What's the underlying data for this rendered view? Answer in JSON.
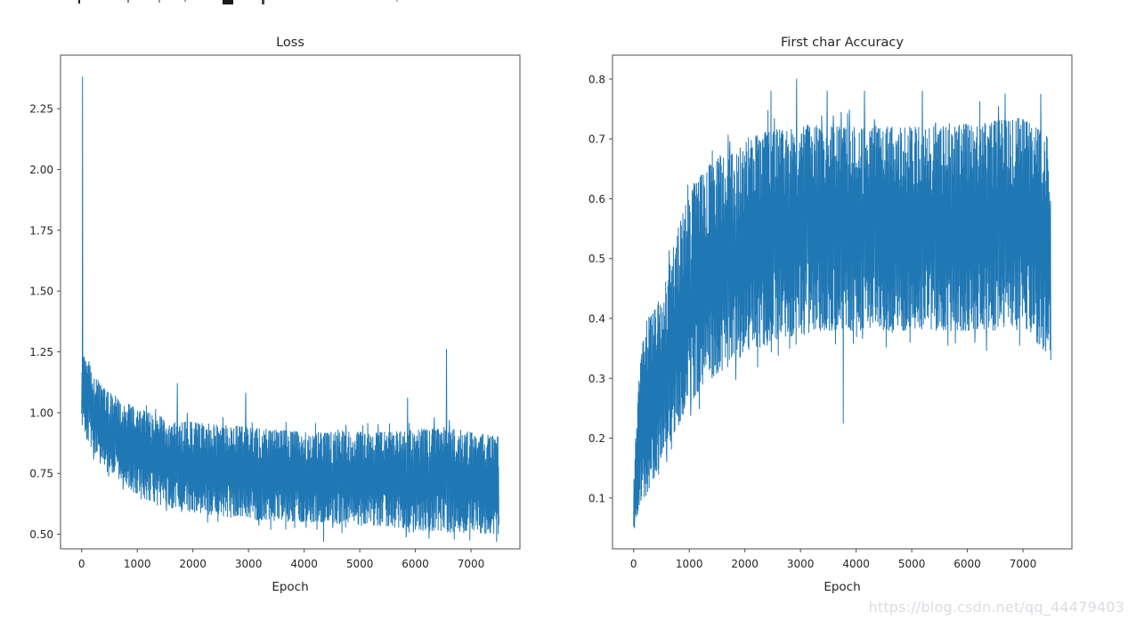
{
  "figure": {
    "background": "#ffffff",
    "axis_color": "#4d4d4d",
    "text_color": "#262626"
  },
  "watermark": {
    "text": "https://blog.csdn.net/qq_44479403",
    "color": "#dcdce4"
  },
  "chart_data": [
    {
      "type": "line",
      "title": "Loss",
      "xlabel": "Epoch",
      "ylabel": "",
      "legend": null,
      "grid": false,
      "line_color": "#1f77b4",
      "xlim": [
        -380,
        7880
      ],
      "ylim": [
        0.44,
        2.47
      ],
      "x_ticks": [
        0,
        1000,
        2000,
        3000,
        4000,
        5000,
        6000,
        7000
      ],
      "x_tick_labels": [
        "0",
        "1000",
        "2000",
        "3000",
        "4000",
        "5000",
        "6000",
        "7000"
      ],
      "y_ticks": [
        2.25,
        2.0,
        1.75,
        1.5,
        1.25,
        1.0,
        0.75,
        0.5
      ],
      "y_tick_labels": [
        "2.25",
        "2.00",
        "1.75",
        "1.50",
        "1.25",
        "1.00",
        "0.75",
        "0.50"
      ],
      "epoch_range": [
        0,
        7500
      ],
      "description": "Noisy per-epoch training loss: initial spike to ~2.38 then a dense oscillating band decaying from ~0.95-1.25 to ~0.50-0.90",
      "band_envelope": [
        [
          0,
          0.95,
          1.25
        ],
        [
          150,
          0.85,
          1.18
        ],
        [
          300,
          0.82,
          1.13
        ],
        [
          500,
          0.76,
          1.08
        ],
        [
          700,
          0.72,
          1.05
        ],
        [
          1000,
          0.66,
          1.02
        ],
        [
          1300,
          0.63,
          0.99
        ],
        [
          1600,
          0.61,
          0.97
        ],
        [
          2000,
          0.59,
          0.96
        ],
        [
          2500,
          0.575,
          0.95
        ],
        [
          3000,
          0.56,
          0.94
        ],
        [
          3500,
          0.555,
          0.93
        ],
        [
          4000,
          0.55,
          0.92
        ],
        [
          4500,
          0.545,
          0.92
        ],
        [
          5000,
          0.54,
          0.92
        ],
        [
          5500,
          0.53,
          0.92
        ],
        [
          6000,
          0.52,
          0.93
        ],
        [
          6500,
          0.51,
          0.94
        ],
        [
          7000,
          0.505,
          0.92
        ],
        [
          7500,
          0.5,
          0.9
        ]
      ],
      "outliers": [
        [
          15,
          2.38
        ],
        [
          130,
          1.21
        ],
        [
          1720,
          1.12
        ],
        [
          2950,
          1.08
        ],
        [
          4350,
          0.47
        ],
        [
          5860,
          1.06
        ],
        [
          6560,
          1.26
        ],
        [
          6700,
          0.48
        ],
        [
          7460,
          0.47
        ]
      ]
    },
    {
      "type": "line",
      "title": "First char Accuracy",
      "xlabel": "Epoch",
      "ylabel": "",
      "legend": null,
      "grid": false,
      "line_color": "#1f77b4",
      "xlim": [
        -380,
        7880
      ],
      "ylim": [
        0.015,
        0.84
      ],
      "x_ticks": [
        0,
        1000,
        2000,
        3000,
        4000,
        5000,
        6000,
        7000
      ],
      "x_tick_labels": [
        "0",
        "1000",
        "2000",
        "3000",
        "4000",
        "5000",
        "6000",
        "7000"
      ],
      "y_ticks": [
        0.8,
        0.7,
        0.6,
        0.5,
        0.4,
        0.3,
        0.2,
        0.1
      ],
      "y_tick_labels": [
        "0.8",
        "0.7",
        "0.6",
        "0.5",
        "0.4",
        "0.3",
        "0.2",
        "0.1"
      ],
      "epoch_range": [
        0,
        7500
      ],
      "description": "Noisy per-epoch first-character accuracy: rises from ~0.05 to a plateau band ~0.38-0.72 by epoch ~2000, peak 0.80 near epoch 2900, dip to ~0.22 near epoch 3800",
      "band_envelope": [
        [
          0,
          0.05,
          0.15
        ],
        [
          100,
          0.08,
          0.3
        ],
        [
          200,
          0.1,
          0.4
        ],
        [
          350,
          0.13,
          0.41
        ],
        [
          500,
          0.16,
          0.44
        ],
        [
          700,
          0.2,
          0.52
        ],
        [
          900,
          0.24,
          0.58
        ],
        [
          1100,
          0.27,
          0.63
        ],
        [
          1400,
          0.3,
          0.66
        ],
        [
          1700,
          0.32,
          0.68
        ],
        [
          2000,
          0.34,
          0.7
        ],
        [
          2500,
          0.36,
          0.715
        ],
        [
          3000,
          0.375,
          0.72
        ],
        [
          3500,
          0.38,
          0.72
        ],
        [
          4000,
          0.38,
          0.72
        ],
        [
          4500,
          0.38,
          0.72
        ],
        [
          5000,
          0.38,
          0.72
        ],
        [
          5500,
          0.38,
          0.72
        ],
        [
          6000,
          0.38,
          0.725
        ],
        [
          6500,
          0.38,
          0.73
        ],
        [
          7000,
          0.39,
          0.735
        ],
        [
          7500,
          0.33,
          0.7
        ]
      ],
      "outliers": [
        [
          15,
          0.05
        ],
        [
          2470,
          0.78
        ],
        [
          2930,
          0.8
        ],
        [
          3480,
          0.78
        ],
        [
          3770,
          0.225
        ],
        [
          4150,
          0.78
        ],
        [
          5190,
          0.78
        ],
        [
          6680,
          0.775
        ],
        [
          7320,
          0.775
        ]
      ]
    }
  ]
}
